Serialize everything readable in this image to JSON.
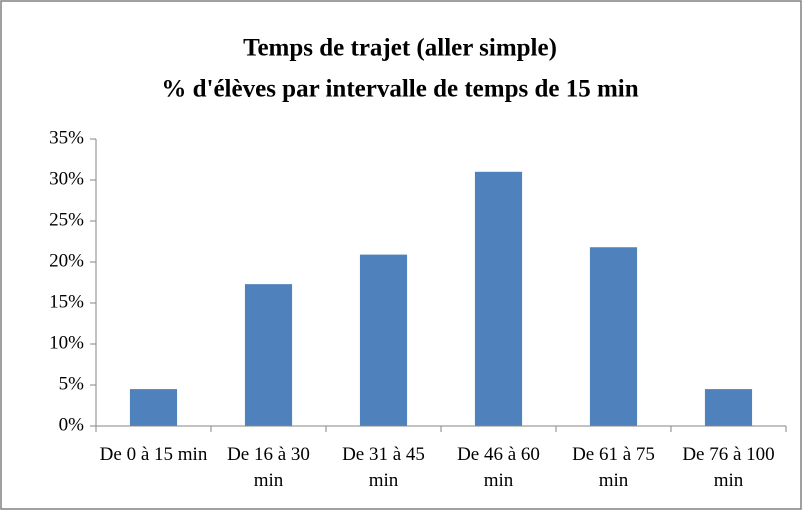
{
  "chart_data": {
    "type": "bar",
    "title": [
      "Temps de trajet (aller simple)",
      "% d'élèves par intervalle de temps de 15 min"
    ],
    "categories": [
      "De 0 à 15 min",
      "De 16 à 30 min",
      "De 31 à 45 min",
      "De 46 à 60 min",
      "De 61 à 75 min",
      "De 76 à 100 min"
    ],
    "values": [
      4.5,
      17.3,
      20.9,
      31,
      21.8,
      4.5
    ],
    "color": "#4f81bd",
    "ylim": [
      0,
      35
    ],
    "yticks": [
      {
        "value": 0,
        "label": "0%"
      },
      {
        "value": 5,
        "label": "5%"
      },
      {
        "value": 10,
        "label": "10%"
      },
      {
        "value": 15,
        "label": "15%"
      },
      {
        "value": 20,
        "label": "20%"
      },
      {
        "value": 25,
        "label": "25%"
      },
      {
        "value": 30,
        "label": "30%"
      },
      {
        "value": 35,
        "label": "35%"
      }
    ],
    "grid": false
  }
}
